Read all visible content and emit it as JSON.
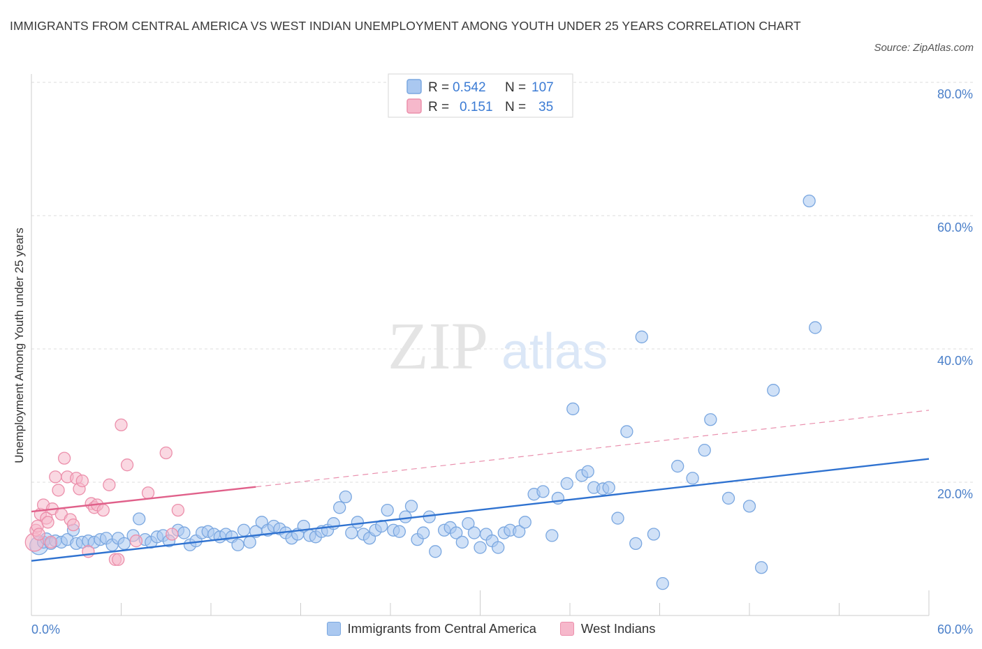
{
  "title": "IMMIGRANTS FROM CENTRAL AMERICA VS WEST INDIAN UNEMPLOYMENT AMONG YOUTH UNDER 25 YEARS CORRELATION CHART",
  "source": "Source: ZipAtlas.com",
  "watermark": {
    "zip": "ZIP",
    "atlas": "atlas"
  },
  "colors": {
    "blue_fill": "#aac8f0",
    "blue_stroke": "#7aa7e0",
    "blue_line": "#2f72d0",
    "pink_fill": "#f6b8cb",
    "pink_stroke": "#ec8fab",
    "pink_line": "#e0608a",
    "tick_text": "#4a7fc9",
    "grid": "#dddddd"
  },
  "legend": {
    "rows": [
      {
        "r_label": "R =",
        "r_value": "0.542",
        "n_label": "N =",
        "n_value": "107",
        "color": "blue"
      },
      {
        "r_label": "R =",
        "r_value": "0.151",
        "n_label": "N =",
        "n_value": "35",
        "color": "pink"
      }
    ]
  },
  "chart_data": {
    "type": "scatter",
    "xlabel": "",
    "ylabel": "Unemployment Among Youth under 25 years",
    "xlim": [
      0,
      60
    ],
    "ylim": [
      0,
      80
    ],
    "x_tick_labels": [
      "0.0%",
      "60.0%"
    ],
    "y_ticks": [
      20,
      40,
      60,
      80
    ],
    "y_tick_labels": [
      "20.0%",
      "40.0%",
      "60.0%",
      "80.0%"
    ],
    "grid": true,
    "legend_position": "top-center",
    "series": [
      {
        "name": "Immigrants from Central America",
        "color": "blue",
        "points": [
          [
            0.5,
            10.5
          ],
          [
            0.8,
            11
          ],
          [
            1.0,
            11.5
          ],
          [
            1.3,
            10.8
          ],
          [
            1.6,
            11.2
          ],
          [
            2.0,
            11
          ],
          [
            2.4,
            11.4
          ],
          [
            2.8,
            12.8
          ],
          [
            3.0,
            10.8
          ],
          [
            3.4,
            11
          ],
          [
            3.8,
            11.2
          ],
          [
            4.2,
            11
          ],
          [
            4.6,
            11.4
          ],
          [
            5.0,
            11.6
          ],
          [
            5.4,
            10.6
          ],
          [
            5.8,
            11.6
          ],
          [
            6.2,
            10.8
          ],
          [
            6.8,
            12
          ],
          [
            7.2,
            14.5
          ],
          [
            7.6,
            11.4
          ],
          [
            8.0,
            11
          ],
          [
            8.4,
            11.8
          ],
          [
            8.8,
            12
          ],
          [
            9.2,
            11.2
          ],
          [
            9.8,
            12.8
          ],
          [
            10.2,
            12.4
          ],
          [
            10.6,
            10.6
          ],
          [
            11.0,
            11.2
          ],
          [
            11.4,
            12.4
          ],
          [
            11.8,
            12.6
          ],
          [
            12.2,
            12.2
          ],
          [
            12.6,
            11.8
          ],
          [
            13.0,
            12.2
          ],
          [
            13.4,
            11.8
          ],
          [
            13.8,
            10.6
          ],
          [
            14.2,
            12.8
          ],
          [
            14.6,
            11
          ],
          [
            15.0,
            12.6
          ],
          [
            15.4,
            14
          ],
          [
            15.8,
            12.8
          ],
          [
            16.2,
            13.4
          ],
          [
            16.6,
            13
          ],
          [
            17.0,
            12.4
          ],
          [
            17.4,
            11.6
          ],
          [
            17.8,
            12.2
          ],
          [
            18.2,
            13.4
          ],
          [
            18.6,
            12
          ],
          [
            19.0,
            11.8
          ],
          [
            19.4,
            12.6
          ],
          [
            19.8,
            12.8
          ],
          [
            20.2,
            13.8
          ],
          [
            20.6,
            16.2
          ],
          [
            21.0,
            17.8
          ],
          [
            21.4,
            12.4
          ],
          [
            21.8,
            14
          ],
          [
            22.2,
            12.2
          ],
          [
            22.6,
            11.6
          ],
          [
            23.0,
            12.8
          ],
          [
            23.4,
            13.4
          ],
          [
            23.8,
            15.8
          ],
          [
            24.2,
            12.8
          ],
          [
            24.6,
            12.6
          ],
          [
            25.0,
            14.8
          ],
          [
            25.4,
            16.4
          ],
          [
            25.8,
            11.4
          ],
          [
            26.2,
            12.4
          ],
          [
            26.6,
            14.8
          ],
          [
            27.0,
            9.6
          ],
          [
            27.6,
            12.8
          ],
          [
            28.0,
            13.2
          ],
          [
            28.4,
            12.4
          ],
          [
            28.8,
            11
          ],
          [
            29.2,
            13.8
          ],
          [
            29.6,
            12.4
          ],
          [
            30.0,
            10.2
          ],
          [
            30.4,
            12.2
          ],
          [
            30.8,
            11.2
          ],
          [
            31.2,
            10.2
          ],
          [
            31.6,
            12.4
          ],
          [
            32.0,
            12.8
          ],
          [
            32.6,
            12.6
          ],
          [
            33.0,
            14
          ],
          [
            33.6,
            18.2
          ],
          [
            34.2,
            18.6
          ],
          [
            34.8,
            12
          ],
          [
            35.2,
            17.6
          ],
          [
            35.8,
            19.8
          ],
          [
            36.2,
            31
          ],
          [
            36.8,
            21
          ],
          [
            37.2,
            21.6
          ],
          [
            37.6,
            19.2
          ],
          [
            38.2,
            19
          ],
          [
            38.6,
            19.2
          ],
          [
            39.2,
            14.6
          ],
          [
            39.8,
            27.6
          ],
          [
            40.4,
            10.8
          ],
          [
            40.8,
            41.8
          ],
          [
            41.6,
            12.2
          ],
          [
            42.2,
            4.8
          ],
          [
            43.2,
            22.4
          ],
          [
            44.2,
            20.6
          ],
          [
            45.0,
            24.8
          ],
          [
            45.4,
            29.4
          ],
          [
            46.6,
            17.6
          ],
          [
            48.0,
            16.4
          ],
          [
            48.8,
            7.2
          ],
          [
            49.6,
            33.8
          ],
          [
            52.0,
            62.2
          ],
          [
            52.4,
            43.2
          ]
        ]
      },
      {
        "name": "West Indians",
        "color": "pink",
        "points": [
          [
            0.2,
            11
          ],
          [
            0.3,
            12.8
          ],
          [
            0.4,
            13.4
          ],
          [
            0.5,
            12.2
          ],
          [
            0.6,
            15.2
          ],
          [
            0.8,
            16.6
          ],
          [
            1.0,
            14.6
          ],
          [
            1.1,
            14
          ],
          [
            1.3,
            11
          ],
          [
            1.4,
            16
          ],
          [
            1.6,
            20.8
          ],
          [
            1.8,
            18.8
          ],
          [
            2.0,
            15.2
          ],
          [
            2.2,
            23.6
          ],
          [
            2.4,
            20.8
          ],
          [
            2.6,
            14.4
          ],
          [
            2.8,
            13.6
          ],
          [
            3.0,
            20.6
          ],
          [
            3.2,
            19
          ],
          [
            3.4,
            20.2
          ],
          [
            3.8,
            9.6
          ],
          [
            4.0,
            16.8
          ],
          [
            4.2,
            16.2
          ],
          [
            4.4,
            16.6
          ],
          [
            4.8,
            15.8
          ],
          [
            5.2,
            19.6
          ],
          [
            5.6,
            8.4
          ],
          [
            5.8,
            8.4
          ],
          [
            6.0,
            28.6
          ],
          [
            6.4,
            22.6
          ],
          [
            7.0,
            11.2
          ],
          [
            7.8,
            18.4
          ],
          [
            9.0,
            24.4
          ],
          [
            9.4,
            12.2
          ],
          [
            9.8,
            15.8
          ]
        ]
      }
    ],
    "trend_lines": [
      {
        "series": "Immigrants from Central America",
        "x": [
          0,
          60
        ],
        "y": [
          8.2,
          23.5
        ],
        "style": "solid"
      },
      {
        "series": "West Indians",
        "x": [
          0,
          15
        ],
        "y": [
          15.6,
          19.3
        ],
        "style": "solid"
      },
      {
        "series": "West Indians",
        "x": [
          15,
          60
        ],
        "y": [
          19.3,
          30.8
        ],
        "style": "dashed"
      }
    ]
  }
}
